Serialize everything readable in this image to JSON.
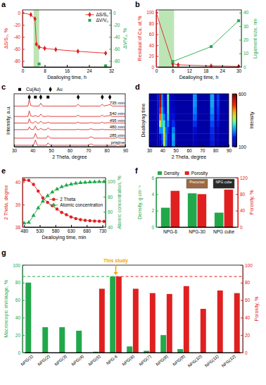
{
  "chart_data": [
    {
      "panel": "a",
      "type": "line",
      "x_label": "Dealloying time, h",
      "y_label": "ΔS/S₀, %",
      "y2_label": "ΔV/V₀, %",
      "xlim": [
        0,
        32
      ],
      "xticks": [
        0,
        8,
        16,
        24,
        32
      ],
      "ylim": [
        -90,
        5
      ],
      "yticks": [
        0,
        -20,
        -40,
        -60,
        -80
      ],
      "y2lim": [
        -90,
        5
      ],
      "y2ticks": [
        0,
        -20,
        -40,
        -60,
        -80
      ],
      "shaded_x": [
        4,
        6
      ],
      "legend": "top right",
      "series": [
        {
          "name": "ΔS/S₀",
          "color": "#e02020",
          "marker": "diamond",
          "line_style": "solid",
          "x": [
            0,
            3,
            4.5,
            5,
            6,
            8,
            12,
            20,
            30
          ],
          "values": [
            0,
            -3,
            -10,
            -52,
            -57,
            -59,
            -61,
            -64,
            -67
          ]
        },
        {
          "name": "ΔV/V₀",
          "color": "#22a84a",
          "marker": "square",
          "line_style": "none",
          "axis": "y2",
          "x": [
            6,
            30
          ],
          "values": [
            -85,
            -88
          ]
        }
      ]
    },
    {
      "panel": "b",
      "type": "line",
      "x_label": "Dealloying time, h",
      "y_label": "Residual of Cu, at.%",
      "y2_label": "Ligament size, nm",
      "xlim": [
        0,
        31
      ],
      "xticks": [
        0,
        6,
        12,
        18,
        24,
        30
      ],
      "ylim": [
        0,
        105
      ],
      "yticks": [
        0,
        20,
        40,
        60,
        80,
        100
      ],
      "y2lim": [
        0,
        42
      ],
      "y2ticks": [
        0,
        10,
        20,
        30,
        40
      ],
      "shaded_x": [
        1,
        6.5
      ],
      "series": [
        {
          "color": "#e02020",
          "marker": "diamond",
          "line_style": "solid",
          "x": [
            0,
            6,
            8,
            20,
            30
          ],
          "values": [
            100,
            6,
            4,
            2,
            1
          ]
        },
        {
          "color": "#22a84a",
          "marker": "square",
          "line_style": "solid",
          "axis": "y2",
          "x": [
            6,
            20,
            30
          ],
          "values": [
            4,
            15,
            34
          ]
        }
      ]
    },
    {
      "panel": "c",
      "type": "line",
      "x_label": "2 Theta, degree",
      "y_label": "Intensity, a.u.",
      "xlim": [
        30,
        90
      ],
      "xticks": [
        30,
        40,
        50,
        60,
        70,
        80,
        90
      ],
      "ylim": [
        0,
        112
      ],
      "tick_labels": "x",
      "legend": "top",
      "x": [
        30,
        37.5,
        38.2,
        39,
        40.5,
        41.5,
        42.5,
        43.5,
        44.4,
        45.5,
        47.5,
        48.3,
        49.5,
        63.5,
        64.6,
        65.5,
        70,
        71.5,
        73,
        76.5,
        77.6,
        78.5,
        81.7,
        83,
        85,
        86,
        87,
        90
      ],
      "series": [
        {
          "name": "pristine",
          "color": "#e03030",
          "line_style": "solid",
          "values": [
            3,
            3,
            3,
            3,
            3,
            14,
            3,
            3,
            3,
            3,
            3,
            8,
            3,
            3,
            3,
            3,
            3,
            6,
            3,
            3,
            3,
            3,
            3,
            3,
            3,
            5,
            3,
            3
          ]
        },
        {
          "name": "285 min",
          "color": "#e03030",
          "line_style": "solid",
          "values": [
            18,
            18,
            18,
            18,
            18,
            28,
            18,
            18,
            18,
            18,
            18,
            23,
            18,
            18,
            18,
            18,
            18,
            21,
            18,
            18,
            18,
            18,
            18,
            18,
            18,
            20,
            18,
            18
          ]
        },
        {
          "name": "480 min",
          "color": "#e03030",
          "line_style": "solid",
          "values": [
            36,
            36,
            42,
            37,
            36,
            44,
            36,
            36,
            39,
            36,
            36,
            40,
            36,
            36,
            37,
            36,
            36,
            38,
            36,
            36,
            37,
            36,
            36,
            36,
            36,
            37,
            36,
            36
          ]
        },
        {
          "name": "495 min",
          "color": "#e03030",
          "line_style": "solid",
          "values": [
            50,
            50,
            59,
            51,
            50,
            54,
            50,
            50,
            54,
            50,
            50,
            52,
            50,
            50,
            52,
            50,
            50,
            51,
            50,
            50,
            52,
            50,
            51,
            50,
            50,
            50,
            50,
            50
          ]
        },
        {
          "name": "540 min",
          "color": "#e03030",
          "line_style": "solid",
          "values": [
            64,
            64,
            76,
            65,
            64,
            66,
            64,
            64,
            69,
            64,
            64,
            65,
            64,
            64,
            67,
            64,
            64,
            64,
            64,
            64,
            67,
            64,
            66,
            64,
            64,
            64,
            64,
            64
          ]
        },
        {
          "name": "735 min",
          "color": "#e03030",
          "line_style": "solid",
          "values": [
            86,
            86,
            100,
            87,
            86,
            86,
            86,
            86,
            92,
            86,
            86,
            86,
            86,
            86,
            90,
            86,
            86,
            86,
            86,
            86,
            90,
            86,
            89,
            86,
            86,
            86,
            86,
            86
          ]
        },
        {
          "name": "Cu(Au)",
          "type": "scatter",
          "marker": "square",
          "color": "#000000",
          "x": [
            41.5,
            48.3
          ],
          "values": [
            105,
            105
          ]
        },
        {
          "name": "Au",
          "type": "scatter",
          "marker": "diamond",
          "color": "#000000",
          "x": [
            38.2,
            44.4,
            64.6,
            77.6,
            81.7
          ],
          "values": [
            105,
            105,
            105,
            105,
            105
          ]
        }
      ]
    },
    {
      "panel": "d",
      "type": "heatmap",
      "x_label": "2 Theta, degree",
      "y_label": "Dealloying time",
      "xlim": [
        30,
        90
      ],
      "xticks": [
        30,
        40,
        50,
        60,
        70,
        80,
        90
      ],
      "tick_labels": "x",
      "color": "jet",
      "x_edges": [
        30,
        36,
        37.5,
        39,
        40.5,
        42,
        43.5,
        45,
        47,
        49.5,
        63,
        66,
        76,
        79,
        81,
        83,
        90
      ],
      "z": [
        [
          120,
          130,
          150,
          200,
          380,
          250,
          150,
          140,
          260,
          120,
          130,
          120,
          180,
          120,
          140,
          120
        ],
        [
          120,
          130,
          170,
          220,
          400,
          260,
          160,
          140,
          270,
          120,
          140,
          120,
          190,
          120,
          140,
          120
        ],
        [
          120,
          140,
          260,
          260,
          380,
          240,
          200,
          140,
          250,
          120,
          160,
          120,
          200,
          120,
          150,
          120
        ],
        [
          120,
          150,
          380,
          300,
          320,
          200,
          260,
          150,
          200,
          120,
          200,
          120,
          220,
          130,
          170,
          120
        ],
        [
          120,
          160,
          460,
          300,
          260,
          180,
          300,
          150,
          170,
          120,
          230,
          120,
          240,
          130,
          190,
          120
        ],
        [
          120,
          170,
          520,
          280,
          200,
          160,
          320,
          150,
          150,
          120,
          250,
          120,
          260,
          140,
          200,
          120
        ],
        [
          120,
          170,
          560,
          260,
          170,
          150,
          330,
          150,
          140,
          120,
          260,
          120,
          270,
          140,
          210,
          120
        ],
        [
          120,
          170,
          580,
          250,
          160,
          150,
          340,
          150,
          140,
          120,
          260,
          120,
          270,
          140,
          210,
          120
        ]
      ],
      "colorbar_range": [
        100,
        600
      ],
      "colorbar_ticks": [
        100,
        600
      ],
      "colorbar_label": "Intensity"
    },
    {
      "panel": "e",
      "type": "line",
      "x_label": "Dealloying time, min",
      "y_label": "2 Theta, degree",
      "y2_label": "Atomic concentration, %",
      "xlim": [
        475,
        740
      ],
      "xticks": [
        480,
        530,
        580,
        630,
        680,
        730
      ],
      "ylim": [
        38,
        40.2
      ],
      "yticks": [
        38,
        39,
        40
      ],
      "y2lim": [
        40,
        105
      ],
      "y2ticks": [
        40,
        60,
        80,
        100
      ],
      "legend": "right",
      "x": [
        480,
        495,
        510,
        525,
        540,
        555,
        570,
        585,
        600,
        615,
        630,
        645,
        660,
        675,
        690,
        705,
        720,
        735
      ],
      "series": [
        {
          "name": "2 Theta",
          "color": "#e02020",
          "marker": "circle",
          "line_style": "solid",
          "values": [
            40.1,
            40.08,
            39.9,
            39.6,
            39.3,
            39.1,
            38.95,
            38.8,
            38.65,
            38.55,
            38.45,
            38.38,
            38.33,
            38.3,
            38.28,
            38.27,
            38.26,
            38.25
          ]
        },
        {
          "name": "Atomic concentration",
          "color": "#22a84a",
          "marker": "triangle",
          "line_style": "solid",
          "axis": "y2",
          "values": [
            45,
            46,
            55,
            65,
            74,
            81,
            86,
            90,
            93,
            95,
            96.5,
            97.5,
            98.3,
            98.8,
            99.2,
            99.4,
            99.6,
            99.7
          ]
        }
      ]
    },
    {
      "panel": "f",
      "type": "bar",
      "y_label": "Density, g cm⁻³",
      "y2_label": "Porosity, %",
      "categories": [
        "NPG-6",
        "NPG-30",
        "NPG cube"
      ],
      "ylim": [
        0,
        6
      ],
      "yticks": [
        0,
        2,
        4,
        6
      ],
      "y2lim": [
        0,
        120
      ],
      "y2ticks": [
        0,
        40,
        80,
        120
      ],
      "legend": "top",
      "series": [
        {
          "name": "Density",
          "color": "#22a84a",
          "values": [
            2.35,
            4.1,
            1.75
          ]
        },
        {
          "name": "Porosity",
          "color": "#e02020",
          "axis": "y2",
          "values": [
            88,
            80,
            91
          ]
        }
      ],
      "annotations": [
        "Precursor",
        "NPG cube"
      ]
    },
    {
      "panel": "g",
      "type": "bar",
      "y_label": "Macroscopic shrinkage, %",
      "y2_label": "Porosity, %",
      "categories": [
        "NPG(1)",
        "NPG(2)",
        "NPG(3)",
        "NPG(4)",
        "NPG(5)",
        "NPG-6",
        "NPG(6)",
        "NPG(7)",
        "NPG(8)",
        "NPG(9)",
        "NPG(10)",
        "NPG(11)",
        "NPG(12)"
      ],
      "ylim": [
        0,
        100
      ],
      "yticks": [
        0,
        20,
        40,
        60,
        80,
        100
      ],
      "y2lim": [
        0,
        100
      ],
      "y2ticks": [
        0,
        20,
        40,
        60,
        80,
        100
      ],
      "series": [
        {
          "color": "#22a84a",
          "values": [
            80,
            29,
            29,
            25,
            1,
            87,
            7,
            2,
            20,
            4,
            null,
            null,
            null
          ]
        },
        {
          "color": "#e02020",
          "axis": "y2",
          "values": [
            null,
            null,
            null,
            null,
            73,
            87,
            73,
            68,
            67,
            76,
            50,
            71,
            68
          ]
        }
      ],
      "reference_lines": [
        {
          "value": 87,
          "axis": "y"
        },
        {
          "value": 87,
          "axis": "y2"
        }
      ],
      "annotation": {
        "text": "This study",
        "category": "NPG-6",
        "color": "#f5a300"
      }
    }
  ]
}
